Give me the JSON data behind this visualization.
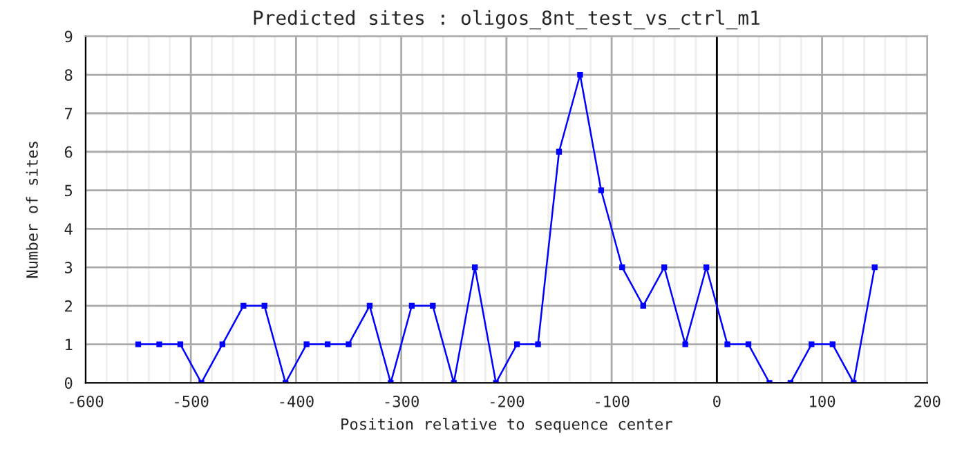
{
  "chart_data": {
    "type": "line",
    "title": "Predicted sites : oligos_8nt_test_vs_ctrl_m1",
    "xlabel": "Position relative to sequence center",
    "ylabel": "Number of sites",
    "x": [
      -550,
      -530,
      -510,
      -490,
      -470,
      -450,
      -430,
      -410,
      -390,
      -370,
      -350,
      -330,
      -310,
      -290,
      -270,
      -250,
      -230,
      -210,
      -190,
      -170,
      -150,
      -130,
      -110,
      -90,
      -70,
      -50,
      -30,
      -10,
      10,
      30,
      50,
      70,
      90,
      110,
      130,
      150
    ],
    "series": [
      {
        "color": "#0000ff",
        "values": [
          1,
          1,
          1,
          0,
          1,
          2,
          2,
          0,
          1,
          1,
          1,
          2,
          0,
          2,
          2,
          0,
          3,
          0,
          1,
          1,
          6,
          8,
          5,
          3,
          2,
          3,
          1,
          3,
          1,
          1,
          0,
          0,
          1,
          1,
          0,
          3
        ]
      }
    ],
    "xlim": [
      -600,
      200
    ],
    "xticks": [
      -600,
      -500,
      -400,
      -300,
      -200,
      -100,
      0,
      100,
      200
    ],
    "ylim": [
      0,
      9
    ],
    "yticks": [
      0,
      1,
      2,
      3,
      4,
      5,
      6,
      7,
      8,
      9
    ],
    "ref_lines": [
      {
        "axis": "x",
        "value": 0,
        "color": "#000000"
      }
    ],
    "grid": true,
    "marker": "square",
    "line_style": "solid"
  }
}
